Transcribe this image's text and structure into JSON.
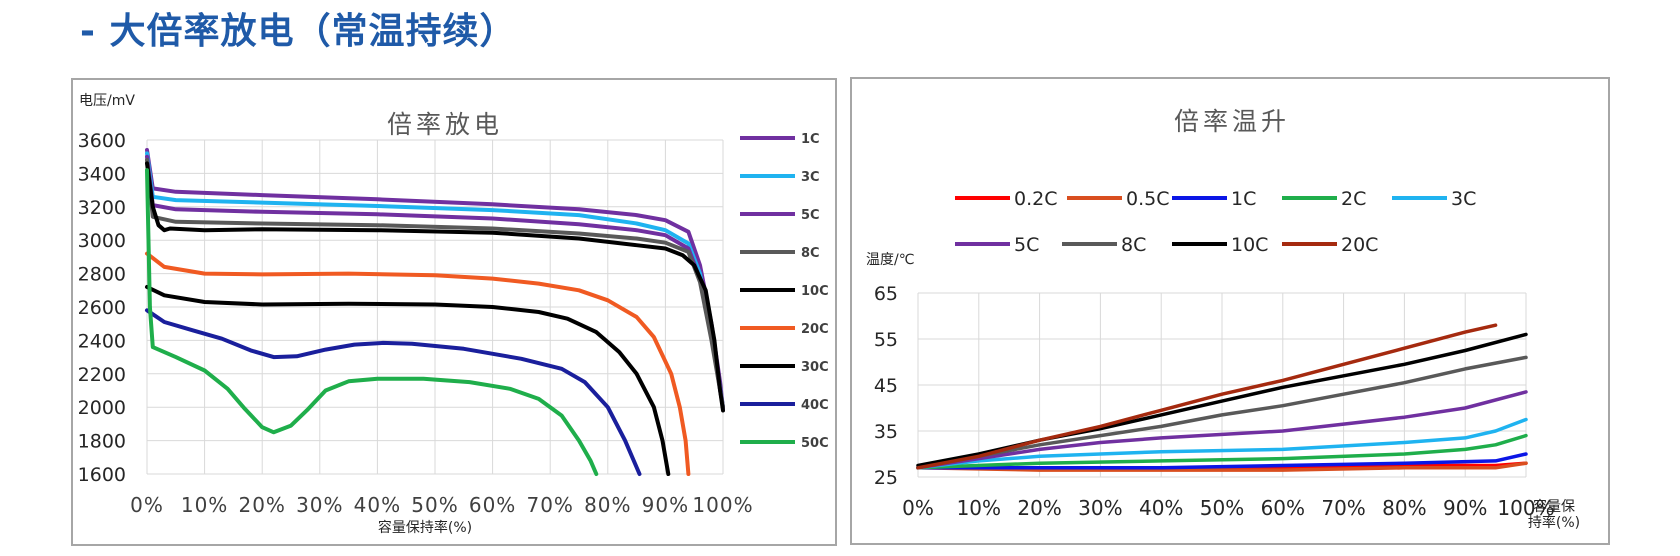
{
  "page": {
    "title": "- 大倍率放电（常温持续）"
  },
  "chart_data": [
    {
      "type": "line",
      "title": "倍率放电",
      "ylabel": "电压/mV",
      "xlabel": "容量保持率(%)",
      "xlim": [
        0,
        100
      ],
      "ylim": [
        1600,
        3600
      ],
      "xticks": [
        0,
        10,
        20,
        30,
        40,
        50,
        60,
        70,
        80,
        90,
        100
      ],
      "xtick_labels": [
        "0%",
        "10%",
        "20%",
        "30%",
        "40%",
        "50%",
        "60%",
        "70%",
        "80%",
        "90%",
        "100%"
      ],
      "yticks": [
        1600,
        1800,
        2000,
        2200,
        2400,
        2600,
        2800,
        3000,
        3200,
        3400,
        3600
      ],
      "ytick_labels": [
        "1600",
        "1800",
        "2000",
        "2200",
        "2400",
        "2600",
        "2800",
        "3000",
        "3200",
        "3400",
        "3600"
      ],
      "legend_position": "right",
      "series": [
        {
          "name": "1C",
          "color": "#7030a0",
          "points": [
            [
              0,
              3540
            ],
            [
              1,
              3310
            ],
            [
              5,
              3290
            ],
            [
              20,
              3270
            ],
            [
              40,
              3245
            ],
            [
              60,
              3215
            ],
            [
              75,
              3185
            ],
            [
              85,
              3150
            ],
            [
              90,
              3120
            ],
            [
              94,
              3050
            ],
            [
              96,
              2850
            ],
            [
              98,
              2500
            ],
            [
              99.5,
              2150
            ],
            [
              100,
              1990
            ]
          ]
        },
        {
          "name": "3C",
          "color": "#1fb3f0",
          "points": [
            [
              0,
              3520
            ],
            [
              1,
              3260
            ],
            [
              5,
              3240
            ],
            [
              20,
              3225
            ],
            [
              40,
              3205
            ],
            [
              60,
              3180
            ],
            [
              75,
              3150
            ],
            [
              85,
              3100
            ],
            [
              90,
              3060
            ],
            [
              94,
              2980
            ],
            [
              96,
              2800
            ],
            [
              98,
              2450
            ],
            [
              100,
              2000
            ]
          ]
        },
        {
          "name": "5C",
          "color": "#7030a0",
          "points": [
            [
              0,
              3500
            ],
            [
              1,
              3210
            ],
            [
              5,
              3185
            ],
            [
              20,
              3170
            ],
            [
              40,
              3155
            ],
            [
              60,
              3130
            ],
            [
              75,
              3095
            ],
            [
              85,
              3060
            ],
            [
              90,
              3030
            ],
            [
              94,
              2950
            ],
            [
              96,
              2770
            ],
            [
              98,
              2420
            ],
            [
              100,
              2000
            ]
          ]
        },
        {
          "name": "8C",
          "color": "#595959",
          "points": [
            [
              0,
              3480
            ],
            [
              1,
              3140
            ],
            [
              5,
              3110
            ],
            [
              20,
              3100
            ],
            [
              40,
              3090
            ],
            [
              60,
              3070
            ],
            [
              75,
              3040
            ],
            [
              85,
              3010
            ],
            [
              90,
              2985
            ],
            [
              94,
              2930
            ],
            [
              96,
              2750
            ],
            [
              98,
              2400
            ],
            [
              100,
              2000
            ]
          ]
        },
        {
          "name": "10C",
          "color": "#000000",
          "points": [
            [
              0,
              3460
            ],
            [
              1,
              3200
            ],
            [
              2,
              3090
            ],
            [
              3,
              3060
            ],
            [
              4,
              3070
            ],
            [
              10,
              3060
            ],
            [
              20,
              3065
            ],
            [
              40,
              3060
            ],
            [
              60,
              3045
            ],
            [
              75,
              3010
            ],
            [
              85,
              2970
            ],
            [
              90,
              2950
            ],
            [
              93,
              2910
            ],
            [
              95,
              2850
            ],
            [
              97,
              2700
            ],
            [
              98.5,
              2400
            ],
            [
              99.5,
              2100
            ],
            [
              100,
              1980
            ]
          ]
        },
        {
          "name": "20C",
          "color": "#f05a22",
          "points": [
            [
              0,
              2920
            ],
            [
              3,
              2840
            ],
            [
              10,
              2800
            ],
            [
              20,
              2795
            ],
            [
              35,
              2800
            ],
            [
              50,
              2790
            ],
            [
              60,
              2770
            ],
            [
              68,
              2740
            ],
            [
              75,
              2700
            ],
            [
              80,
              2640
            ],
            [
              85,
              2540
            ],
            [
              88,
              2420
            ],
            [
              91,
              2200
            ],
            [
              92.5,
              2000
            ],
            [
              93.5,
              1800
            ],
            [
              94,
              1600
            ]
          ]
        },
        {
          "name": "30C",
          "color": "#000000",
          "points": [
            [
              0,
              2720
            ],
            [
              3,
              2670
            ],
            [
              10,
              2630
            ],
            [
              20,
              2615
            ],
            [
              35,
              2620
            ],
            [
              50,
              2615
            ],
            [
              60,
              2600
            ],
            [
              68,
              2570
            ],
            [
              73,
              2530
            ],
            [
              78,
              2450
            ],
            [
              82,
              2330
            ],
            [
              85,
              2200
            ],
            [
              88,
              2000
            ],
            [
              89.5,
              1800
            ],
            [
              90.5,
              1600
            ]
          ]
        },
        {
          "name": "40C",
          "color": "#1a1f9c",
          "points": [
            [
              0,
              2580
            ],
            [
              3,
              2510
            ],
            [
              8,
              2460
            ],
            [
              13,
              2410
            ],
            [
              18,
              2340
            ],
            [
              22,
              2300
            ],
            [
              26,
              2305
            ],
            [
              31,
              2345
            ],
            [
              36,
              2375
            ],
            [
              41,
              2385
            ],
            [
              46,
              2380
            ],
            [
              55,
              2350
            ],
            [
              65,
              2290
            ],
            [
              72,
              2230
            ],
            [
              76,
              2150
            ],
            [
              80,
              2000
            ],
            [
              83,
              1800
            ],
            [
              85.5,
              1600
            ]
          ]
        },
        {
          "name": "50C",
          "color": "#1fae4b",
          "points": [
            [
              0,
              3420
            ],
            [
              0.5,
              2600
            ],
            [
              1,
              2360
            ],
            [
              5,
              2300
            ],
            [
              10,
              2220
            ],
            [
              14,
              2110
            ],
            [
              17,
              1990
            ],
            [
              20,
              1880
            ],
            [
              22,
              1850
            ],
            [
              25,
              1890
            ],
            [
              28,
              1990
            ],
            [
              31,
              2100
            ],
            [
              35,
              2155
            ],
            [
              40,
              2170
            ],
            [
              48,
              2170
            ],
            [
              56,
              2150
            ],
            [
              63,
              2110
            ],
            [
              68,
              2050
            ],
            [
              72,
              1950
            ],
            [
              75,
              1800
            ],
            [
              77,
              1680
            ],
            [
              78,
              1600
            ]
          ]
        }
      ]
    },
    {
      "type": "line",
      "title": "倍率温升",
      "ylabel": "温度/℃",
      "xlabel": "容量保持率(%)",
      "xlabel_lines": [
        "容量保",
        "持率(%)"
      ],
      "xlim": [
        0,
        100
      ],
      "ylim": [
        25,
        65
      ],
      "xticks": [
        0,
        10,
        20,
        30,
        40,
        50,
        60,
        70,
        80,
        90,
        100
      ],
      "xtick_labels": [
        "0%",
        "10%",
        "20%",
        "30%",
        "40%",
        "50%",
        "60%",
        "70%",
        "80%",
        "90%",
        "100%"
      ],
      "yticks": [
        25,
        35,
        45,
        55,
        65
      ],
      "ytick_labels": [
        "25",
        "35",
        "45",
        "55",
        "65"
      ],
      "legend_position": "top",
      "series": [
        {
          "name": "0.2C",
          "color": "#ff0000",
          "points": [
            [
              0,
              27
            ],
            [
              20,
              27
            ],
            [
              40,
              27
            ],
            [
              60,
              27
            ],
            [
              80,
              27.5
            ],
            [
              95,
              27.5
            ],
            [
              100,
              28
            ]
          ]
        },
        {
          "name": "0.5C",
          "color": "#d94e1f",
          "points": [
            [
              0,
              27
            ],
            [
              20,
              26.5
            ],
            [
              40,
              26.5
            ],
            [
              60,
              26.5
            ],
            [
              80,
              27
            ],
            [
              95,
              27
            ],
            [
              100,
              28
            ]
          ]
        },
        {
          "name": "1C",
          "color": "#0b16e6",
          "points": [
            [
              0,
              27
            ],
            [
              20,
              27
            ],
            [
              40,
              27
            ],
            [
              60,
              27.5
            ],
            [
              80,
              28
            ],
            [
              95,
              28.5
            ],
            [
              100,
              30
            ]
          ]
        },
        {
          "name": "2C",
          "color": "#1fae4b",
          "points": [
            [
              0,
              27
            ],
            [
              20,
              28
            ],
            [
              40,
              28.5
            ],
            [
              60,
              29
            ],
            [
              80,
              30
            ],
            [
              90,
              31
            ],
            [
              95,
              32
            ],
            [
              100,
              34
            ]
          ]
        },
        {
          "name": "3C",
          "color": "#1fb3f0",
          "points": [
            [
              0,
              27
            ],
            [
              10,
              28.5
            ],
            [
              20,
              29.5
            ],
            [
              40,
              30.5
            ],
            [
              60,
              31
            ],
            [
              80,
              32.5
            ],
            [
              90,
              33.5
            ],
            [
              95,
              35
            ],
            [
              100,
              37.5
            ]
          ]
        },
        {
          "name": "5C",
          "color": "#7030a0",
          "points": [
            [
              0,
              27
            ],
            [
              10,
              29
            ],
            [
              20,
              31
            ],
            [
              30,
              32.5
            ],
            [
              40,
              33.5
            ],
            [
              60,
              35
            ],
            [
              70,
              36.5
            ],
            [
              80,
              38
            ],
            [
              90,
              40
            ],
            [
              100,
              43.5
            ]
          ]
        },
        {
          "name": "8C",
          "color": "#595959",
          "points": [
            [
              0,
              27
            ],
            [
              10,
              29.5
            ],
            [
              20,
              32
            ],
            [
              30,
              34
            ],
            [
              40,
              36
            ],
            [
              50,
              38.5
            ],
            [
              60,
              40.5
            ],
            [
              70,
              43
            ],
            [
              80,
              45.5
            ],
            [
              90,
              48.5
            ],
            [
              100,
              51
            ]
          ]
        },
        {
          "name": "10C",
          "color": "#000000",
          "points": [
            [
              0,
              27.5
            ],
            [
              10,
              30
            ],
            [
              20,
              33
            ],
            [
              30,
              35.5
            ],
            [
              40,
              38.5
            ],
            [
              50,
              41.5
            ],
            [
              60,
              44.5
            ],
            [
              70,
              47
            ],
            [
              80,
              49.5
            ],
            [
              90,
              52.5
            ],
            [
              100,
              56
            ]
          ]
        },
        {
          "name": "20C",
          "color": "#a52a0f",
          "points": [
            [
              0,
              27
            ],
            [
              10,
              29.5
            ],
            [
              20,
              33
            ],
            [
              30,
              36
            ],
            [
              40,
              39.5
            ],
            [
              50,
              43
            ],
            [
              60,
              46
            ],
            [
              70,
              49.5
            ],
            [
              80,
              53
            ],
            [
              90,
              56.5
            ],
            [
              95,
              58
            ]
          ]
        }
      ]
    }
  ]
}
